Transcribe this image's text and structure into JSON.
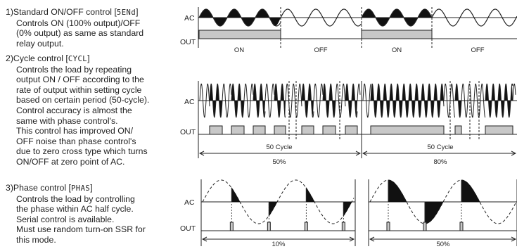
{
  "section1": {
    "title_prefix": "1)Standard ON/OFF control [",
    "code": "5ENd",
    "title_suffix": "]",
    "body": [
      "Controls ON (100% output)/OFF",
      "(0% output) as same as standard",
      "relay output."
    ]
  },
  "section2": {
    "title_prefix": "2)Cycle control [",
    "code": "CYCL",
    "title_suffix": "]",
    "body": [
      "Controls the load by repeating",
      "output ON / OFF according to the",
      "rate of output within setting cycle",
      "based on certain period (50-cycle).",
      "Control accuracy is almost the",
      "same with phase control's.",
      "This control has improved ON/",
      "OFF noise than phase control's",
      "due to zero cross type which turns",
      "ON/OFF at zero point of AC."
    ]
  },
  "section3": {
    "title_prefix": "3)Phase control [",
    "code": "PHAS",
    "title_suffix": "]",
    "body": [
      "Controls the load by controlling",
      "the phase within AC half cycle.",
      "Serial control is available.",
      "Must use random turn-on SSR for",
      "this mode."
    ]
  },
  "diagram1": {
    "ac_label": "AC",
    "out_label": "OUT",
    "states": [
      "ON",
      "OFF",
      "ON",
      "OFF"
    ]
  },
  "diagram2": {
    "ac_label": "AC",
    "out_label": "OUT",
    "left": {
      "cycle_label": "50 Cycle",
      "percent": "50%"
    },
    "right": {
      "cycle_label": "50 Cycle",
      "percent": "80%"
    }
  },
  "diagram3": {
    "ac_label": "AC",
    "out_label": "OUT",
    "left": {
      "percent": "10%"
    },
    "right": {
      "percent": "50%"
    }
  }
}
